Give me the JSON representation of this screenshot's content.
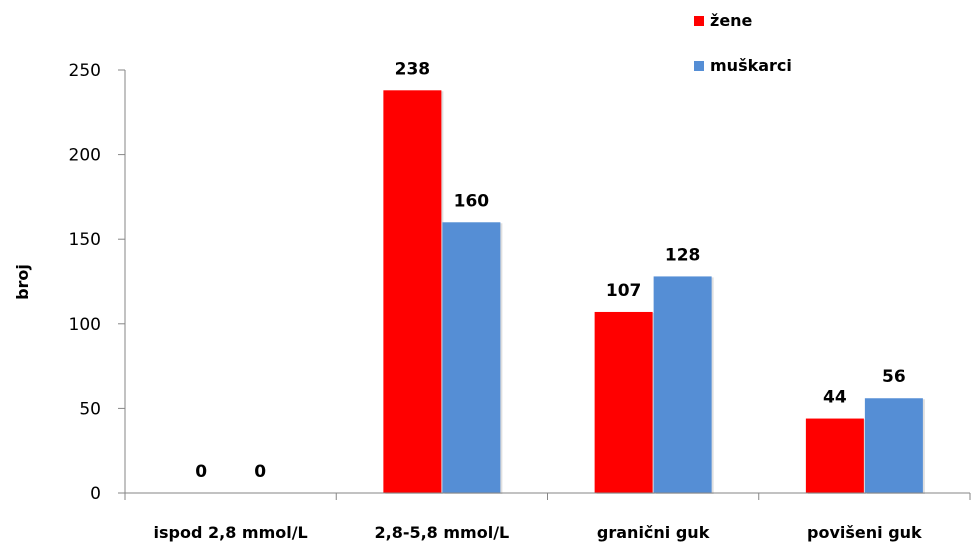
{
  "chart_data": {
    "type": "bar",
    "title": "",
    "xlabel": "",
    "ylabel": "broj",
    "categories": [
      "ispod 2,8 mmol/L",
      "2,8-5,8 mmol/L",
      "granični guk",
      "povišeni guk"
    ],
    "series": [
      {
        "name": "žene",
        "color": "#ff0000",
        "values": [
          0,
          238,
          107,
          44
        ]
      },
      {
        "name": "muškarci",
        "color": "#558ed5",
        "values": [
          0,
          160,
          128,
          56
        ]
      }
    ],
    "ylim": [
      0,
      250
    ],
    "yticks": [
      0,
      50,
      100,
      150,
      200,
      250
    ],
    "grid": false,
    "legend_position": "top-right",
    "data_labels": true
  }
}
